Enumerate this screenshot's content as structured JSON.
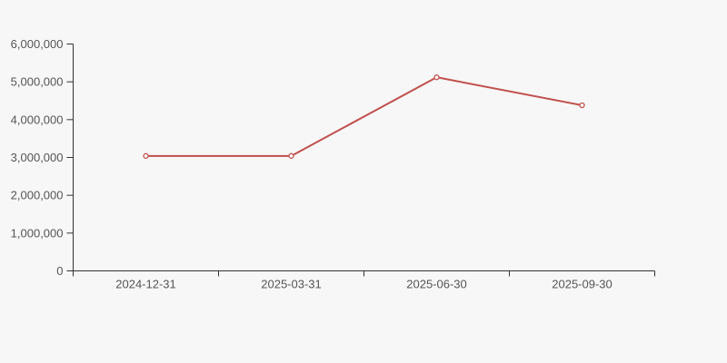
{
  "page": {
    "background_color": "#f7f7f7"
  },
  "chart_data": {
    "type": "line",
    "title": "",
    "xlabel": "",
    "ylabel": "",
    "x": [
      "2024-12-31",
      "2025-03-31",
      "2025-06-30",
      "2025-09-30"
    ],
    "series": [
      {
        "name": "series-1",
        "color": "#c0504d",
        "values": [
          3040000,
          3040000,
          5120000,
          4380000
        ]
      }
    ],
    "ylim": [
      0,
      6000000
    ],
    "y_ticks": [
      0,
      1000000,
      2000000,
      3000000,
      4000000,
      5000000,
      6000000
    ],
    "y_tick_labels": [
      "0",
      "1,000,000",
      "2,000,000",
      "3,000,000",
      "4,000,000",
      "5,000,000",
      "6,000,000"
    ],
    "grid": false,
    "legend_position": "none",
    "marker": "open-circle",
    "marker_fill": "#ffffff",
    "axis_color": "#333333",
    "tick_label_color": "#555555",
    "line_width": 2
  }
}
